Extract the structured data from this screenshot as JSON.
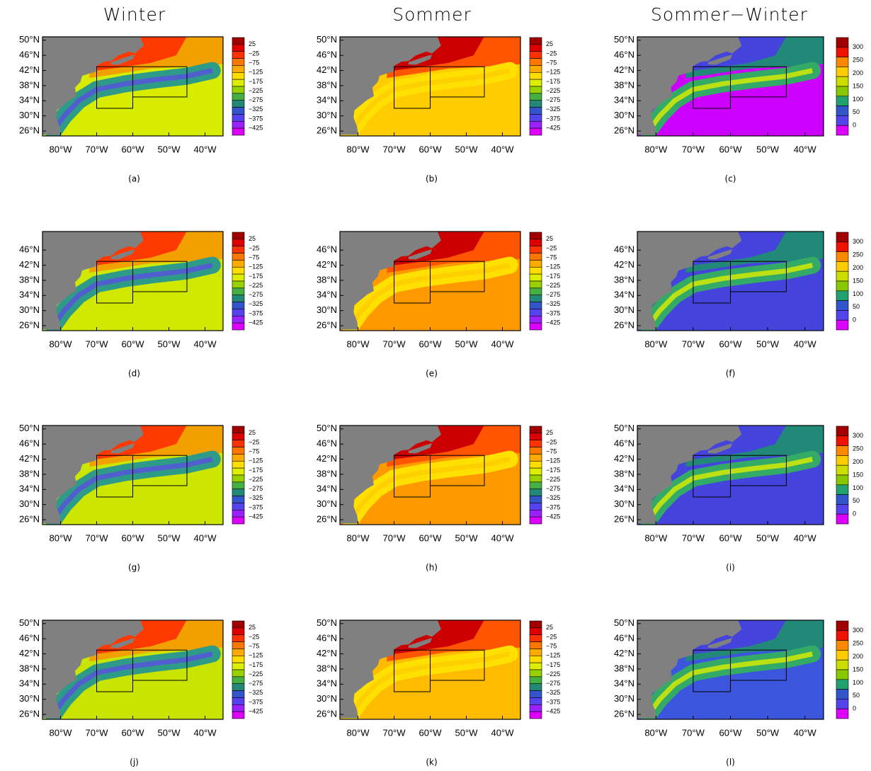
{
  "column_titles": [
    "Winter",
    "Sommer",
    "Sommer−Winter"
  ],
  "lon_ticks": [
    "80°W",
    "70°W",
    "60°W",
    "50°W",
    "40°W"
  ],
  "colorbar_anomaly": [
    "25",
    "−25",
    "−75",
    "−125",
    "−175",
    "−225",
    "−275",
    "−325",
    "−375",
    "−425"
  ],
  "colorbar_difference": [
    "300",
    "250",
    "200",
    "150",
    "100",
    "50",
    "0"
  ],
  "rows": [
    {
      "lat_ticks": [
        "50°N",
        "46°N",
        "42°N",
        "38°N",
        "34°N",
        "30°N",
        "26°N"
      ],
      "panels": [
        {
          "label": "(a)"
        },
        {
          "label": "(b)"
        },
        {
          "label": "(c)"
        }
      ]
    },
    {
      "lat_ticks": [
        "46°N",
        "42°N",
        "38°N",
        "34°N",
        "30°N",
        "26°N"
      ],
      "panels": [
        {
          "label": "(d)"
        },
        {
          "label": "(e)"
        },
        {
          "label": "(f)"
        }
      ]
    },
    {
      "lat_ticks": [
        "50°N",
        "46°N",
        "42°N",
        "38°N",
        "34°N",
        "30°N",
        "26°N"
      ],
      "panels": [
        {
          "label": "(g)"
        },
        {
          "label": "(h)"
        },
        {
          "label": "(i)"
        }
      ]
    },
    {
      "lat_ticks": [
        "50°N",
        "46°N",
        "42°N",
        "38°N",
        "34°N",
        "30°N",
        "26°N"
      ],
      "panels": [
        {
          "label": "(j)"
        },
        {
          "label": "(k)"
        },
        {
          "label": "(l)"
        }
      ]
    }
  ]
}
